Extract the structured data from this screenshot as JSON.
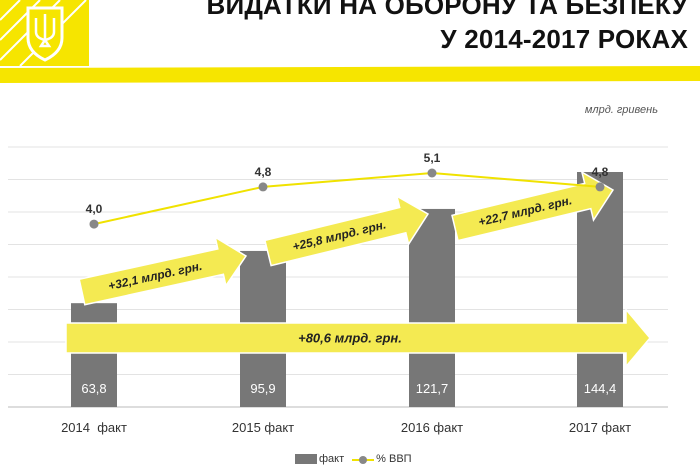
{
  "title": {
    "line1": "ВИДАТКИ НА ОБОРОНУ ТА БЕЗПЕКУ",
    "line2": "У 2014-2017 РОКАХ"
  },
  "unit_label": "млрд. гривень",
  "colors": {
    "brand_yellow": "#f6e500",
    "bar_gray": "#777777",
    "line_yellow": "#f0e200",
    "arrow_yellow": "#f4ea52"
  },
  "chart_data": {
    "type": "bar",
    "categories": [
      "2014  факт",
      "2015 факт",
      "2016 факт",
      "2017 факт"
    ],
    "series": [
      {
        "name": "факт",
        "type": "bar",
        "values": [
          63.8,
          95.9,
          121.7,
          144.4
        ],
        "value_labels": [
          "63,8",
          "95,9",
          "121,7",
          "144,4"
        ]
      },
      {
        "name": "% ВВП",
        "type": "line",
        "values": [
          4.0,
          4.8,
          5.1,
          4.8
        ],
        "value_labels": [
          "4,0",
          "4,8",
          "5,1",
          "4,8"
        ]
      }
    ],
    "annotations": [
      {
        "text": "+32,1 млрд. грн.",
        "from": "2014  факт",
        "to": "2015 факт"
      },
      {
        "text": "+25,8 млрд. грн.",
        "from": "2015 факт",
        "to": "2016 факт"
      },
      {
        "text": "+22,7 млрд. грн.",
        "from": "2016 факт",
        "to": "2017 факт"
      },
      {
        "text": "+80,6 млрд. грн.",
        "from": "2014  факт",
        "to": "2017 факт"
      }
    ],
    "grid": true,
    "legend": "bottom"
  },
  "legend": {
    "bar_label": "факт",
    "line_label": "% ВВП"
  }
}
